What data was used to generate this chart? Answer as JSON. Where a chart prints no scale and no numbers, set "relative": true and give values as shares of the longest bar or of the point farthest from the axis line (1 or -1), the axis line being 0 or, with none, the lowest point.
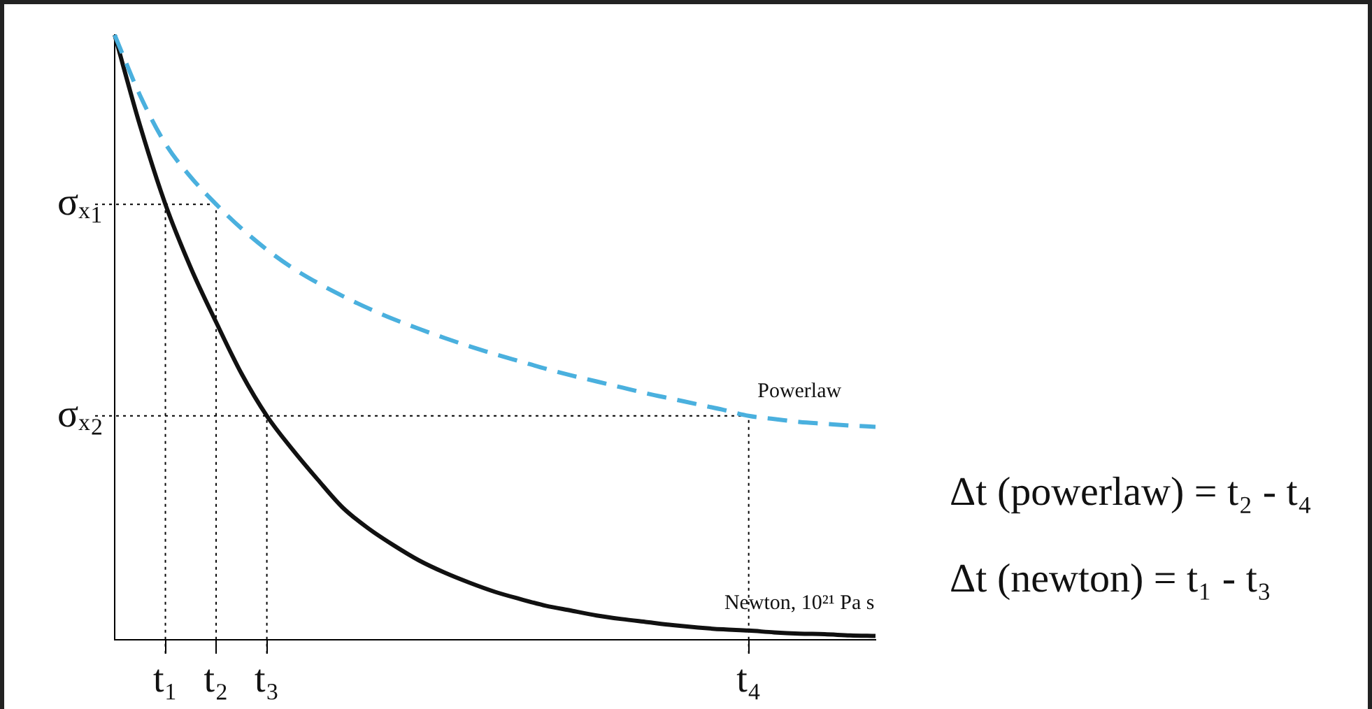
{
  "chart_data": {
    "type": "line",
    "relative": true,
    "categories": [
      null,
      null,
      "t₁",
      null,
      "t₂",
      null,
      "t₃",
      null,
      null,
      null,
      null,
      null,
      null,
      null,
      null,
      null,
      null,
      null,
      null,
      null,
      null,
      null,
      null,
      null,
      null,
      "t₄",
      null,
      null,
      null,
      null,
      null
    ],
    "series": [
      {
        "name": "Powerlaw",
        "color": "#4ab0de",
        "line_style": "dashed",
        "values": [
          1,
          0.9,
          0.82,
          0.765,
          0.72,
          0.68,
          0.645,
          0.615,
          0.59,
          0.568,
          0.548,
          0.53,
          0.514,
          0.499,
          0.485,
          0.472,
          0.46,
          0.448,
          0.437,
          0.427,
          0.417,
          0.407,
          0.398,
          0.389,
          0.38,
          0.37,
          0.365,
          0.36,
          0.357,
          0.354,
          0.352
        ]
      },
      {
        "name": "Newton, 10²¹ Pa s",
        "color": "#111111",
        "line_style": "solid",
        "values": [
          1,
          0.85,
          0.72,
          0.615,
          0.525,
          0.44,
          0.37,
          0.315,
          0.265,
          0.218,
          0.184,
          0.156,
          0.131,
          0.111,
          0.094,
          0.079,
          0.067,
          0.056,
          0.048,
          0.04,
          0.034,
          0.029,
          0.024,
          0.02,
          0.017,
          0.015,
          0.012,
          0.01,
          0.009,
          0.007,
          0.006
        ]
      }
    ],
    "ref_lines": [
      {
        "axis": "y",
        "value": 0.72,
        "label": "σₓ₁",
        "line_style": "dotted"
      },
      {
        "axis": "y",
        "value": 0.37,
        "label": "σₓ₂",
        "line_style": "dotted"
      },
      {
        "axis": "x",
        "value": "t₁",
        "line_style": "dotted"
      },
      {
        "axis": "x",
        "value": "t₂",
        "line_style": "dotted"
      },
      {
        "axis": "x",
        "value": "t₃",
        "line_style": "dotted"
      },
      {
        "axis": "x",
        "value": "t₄",
        "line_style": "dotted"
      }
    ],
    "annotations": [
      "Δt (powerlaw) = t₂ - t₄",
      "Δt (newton) = t₁ - t₃"
    ],
    "legend": false,
    "grid": false
  }
}
